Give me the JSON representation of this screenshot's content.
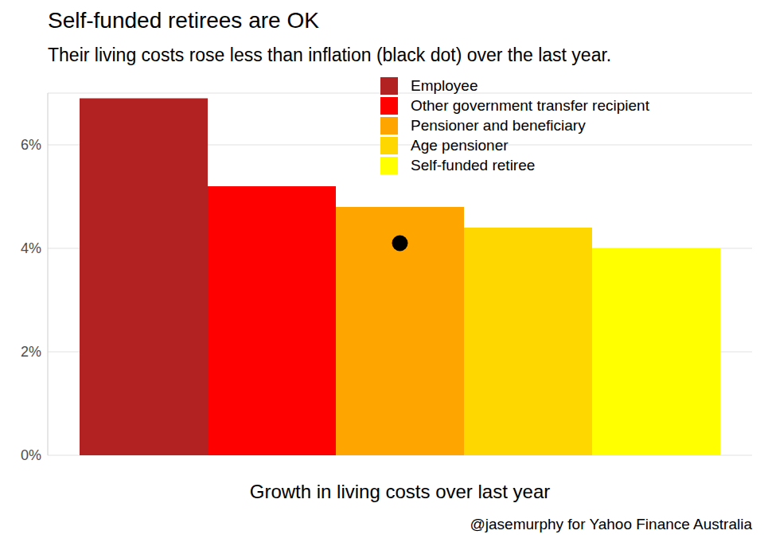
{
  "chart_data": {
    "type": "bar",
    "title": "Self-funded retirees are OK",
    "subtitle": "Their living costs rose less than inflation (black dot) over the last year.",
    "x_label": "Growth in living costs over last year",
    "source": "@jasemurphy for Yahoo Finance Australia",
    "categories": [
      "Employee",
      "Other government transfer recipient",
      "Pensioner and beneficiary",
      "Age pensioner",
      "Self-funded retiree"
    ],
    "values": [
      6.9,
      5.2,
      4.8,
      4.4,
      4.0
    ],
    "colors": [
      "#b22222",
      "#ff0000",
      "#ffa500",
      "#ffd700",
      "#ffff00"
    ],
    "reference_point": {
      "category": "Pensioner and beneficiary",
      "value": 4.1,
      "color": "#000000"
    },
    "ylim": [
      0,
      7
    ],
    "yticks": [
      {
        "value": 0,
        "label": "0%"
      },
      {
        "value": 2,
        "label": "2%"
      },
      {
        "value": 4,
        "label": "4%"
      },
      {
        "value": 6,
        "label": "6%"
      }
    ],
    "grid": true,
    "legend": "top-right",
    "tick_labels": "y"
  }
}
